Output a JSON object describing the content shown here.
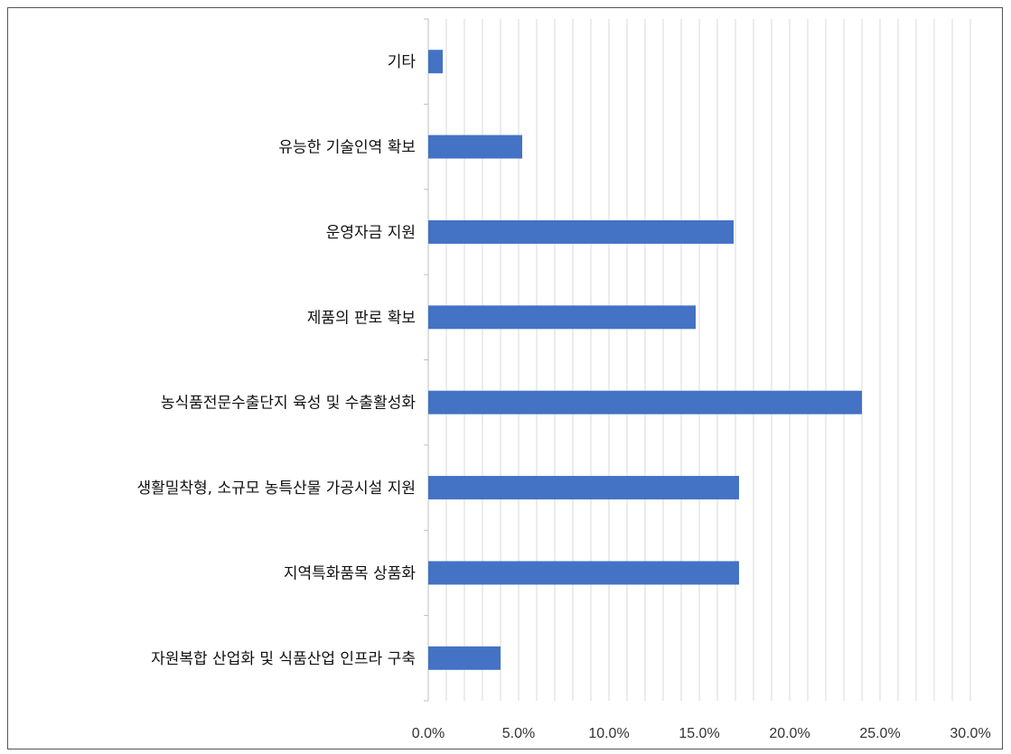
{
  "chart_data": {
    "type": "bar",
    "orientation": "horizontal",
    "categories": [
      "기타",
      "유능한 기술인역 확보",
      "운영자금 지원",
      "제품의 판로 확보",
      "농식품전문수출단지 육성 및 수출활성화",
      "생활밀착형, 소규모 농특산물 가공시설 지원",
      "지역특화품목 상품화",
      "자원복합 산업화 및 식품산업 인프라 구축"
    ],
    "values": [
      0.8,
      5.2,
      16.9,
      14.8,
      24.0,
      17.2,
      17.2,
      4.0
    ],
    "xlim": [
      0,
      30
    ],
    "xticks": [
      0,
      5,
      10,
      15,
      20,
      25,
      30
    ],
    "tick_labels": [
      "0.0%",
      "5.0%",
      "10.0%",
      "15.0%",
      "20.0%",
      "25.0%",
      "30.0%"
    ],
    "title": "",
    "xlabel": "",
    "ylabel": "",
    "grid": "vertical",
    "legend": "none",
    "colors": {
      "bar": "#4472C4",
      "grid": "#D9D9D9",
      "axis": "#BFBFBF"
    }
  }
}
